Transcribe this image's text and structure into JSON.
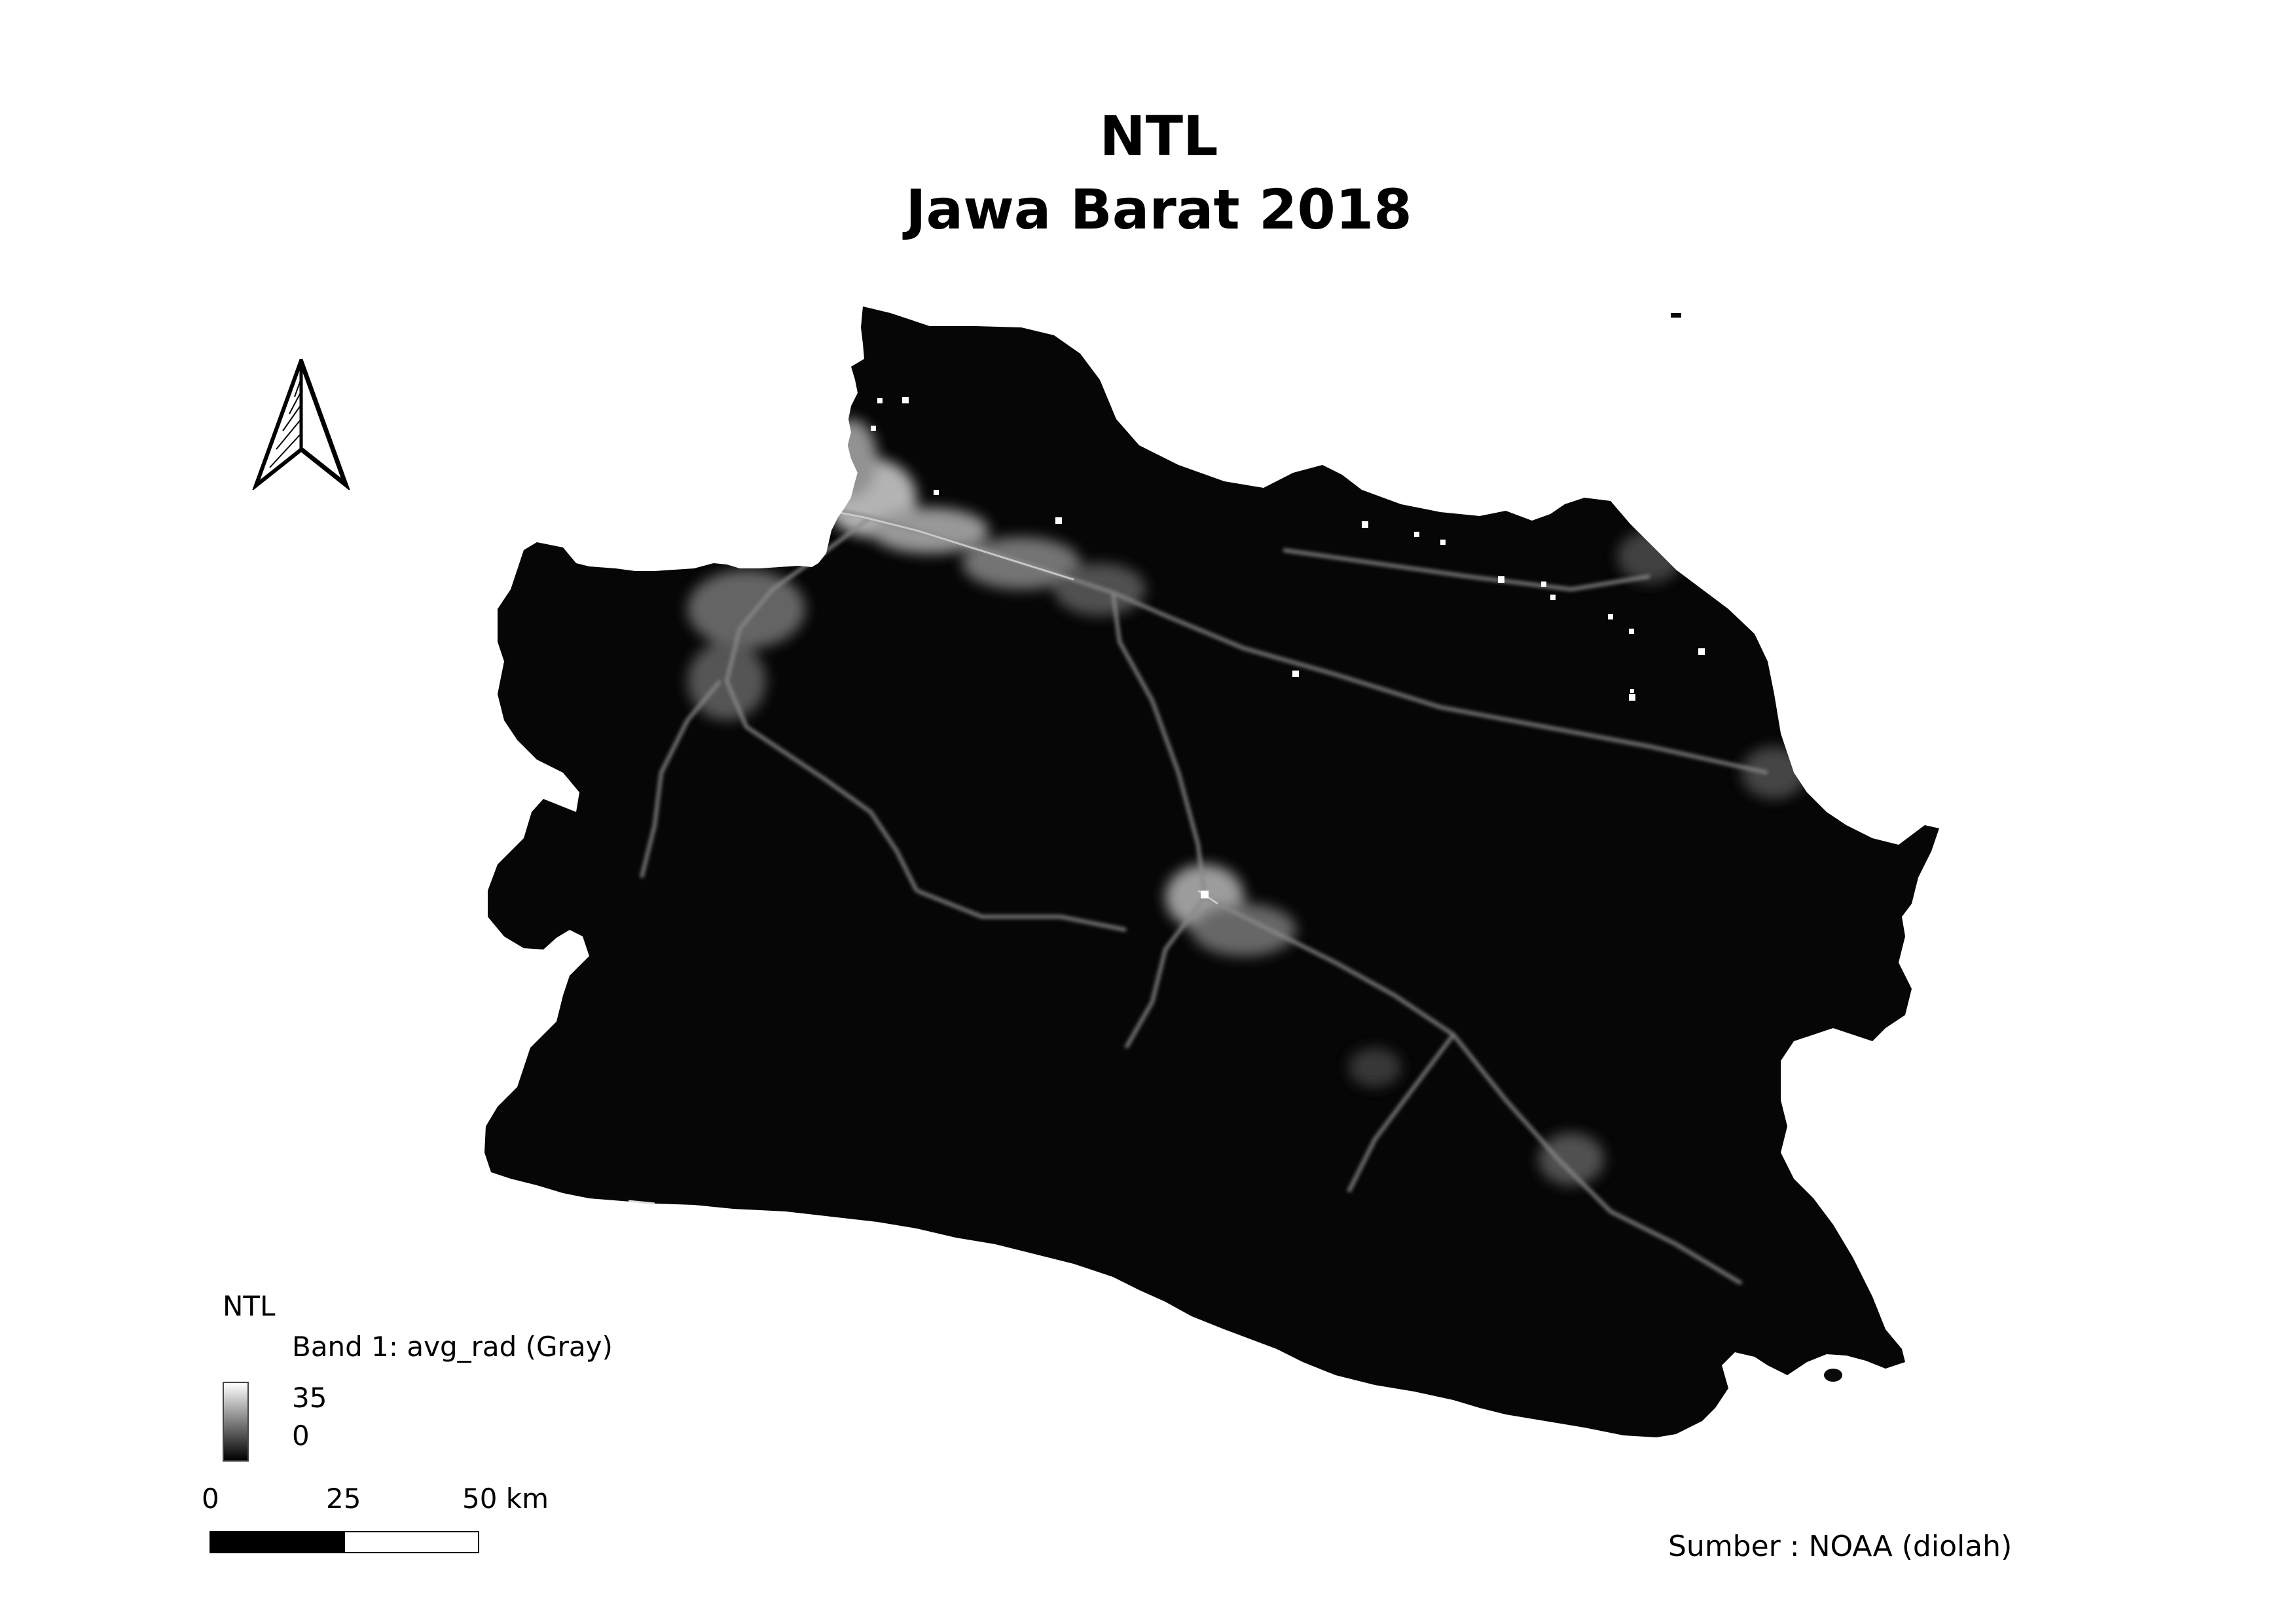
{
  "title": {
    "line1": "NTL",
    "line2": "Jawa Barat 2018"
  },
  "legend": {
    "layer_title": "NTL",
    "band_label": "Band 1: avg_rad (Gray)",
    "max_value": "35",
    "min_value": "0"
  },
  "scale_bar": {
    "labels": [
      "0",
      "25",
      "50 km"
    ]
  },
  "source": "Sumber : NOAA (diolah)",
  "colors": {
    "land": "#060606",
    "lights": "#ffffff",
    "background": "#ffffff"
  },
  "icons": {
    "north_arrow": "north-arrow-icon"
  }
}
